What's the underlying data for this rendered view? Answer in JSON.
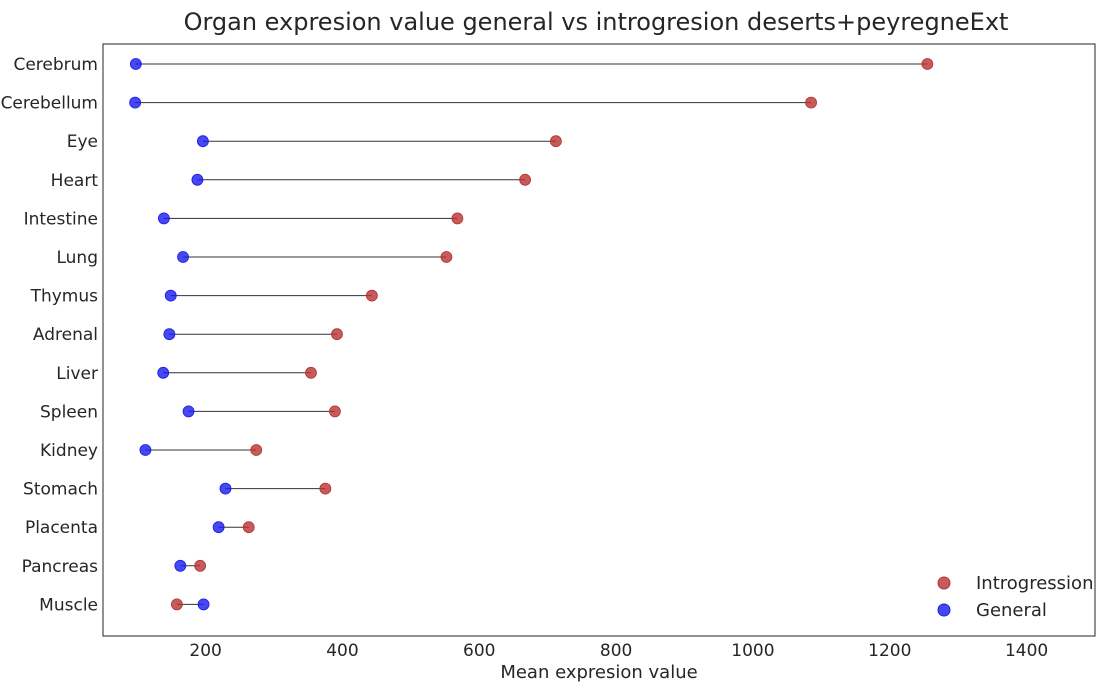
{
  "chart_data": {
    "type": "dumbbell",
    "title": "Organ expresion value general vs introgresion deserts+peyregneExt",
    "xlabel": "Mean expresion value",
    "ylabel": "",
    "xlim": [
      50,
      1500
    ],
    "xticks": [
      200,
      400,
      600,
      800,
      1000,
      1200,
      1400
    ],
    "grid": false,
    "legend_position": "lower-right",
    "categories": [
      "Cerebrum",
      "Cerebellum",
      "Eye",
      "Heart",
      "Intestine",
      "Lung",
      "Thymus",
      "Adrenal",
      "Liver",
      "Spleen",
      "Kidney",
      "Stomach",
      "Placenta",
      "Pancreas",
      "Muscle"
    ],
    "series": [
      {
        "name": "Introgression",
        "color": "#b83232",
        "values": [
          1255,
          1085,
          712,
          667,
          568,
          552,
          443,
          392,
          354,
          389,
          274,
          375,
          263,
          192,
          158
        ]
      },
      {
        "name": "General",
        "color": "#1a1aee",
        "values": [
          98,
          97,
          196,
          188,
          139,
          167,
          149,
          147,
          138,
          175,
          112,
          229,
          219,
          163,
          197
        ]
      }
    ]
  }
}
